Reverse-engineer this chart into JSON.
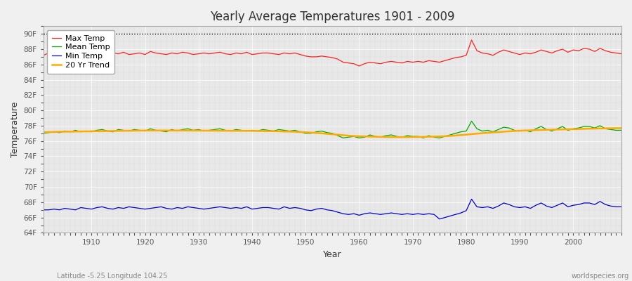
{
  "title": "Yearly Average Temperatures 1901 - 2009",
  "xlabel": "Year",
  "ylabel": "Temperature",
  "footnote_left": "Latitude -5.25 Longitude 104.25",
  "footnote_right": "worldspecies.org",
  "fig_bg_color": "#f0f0f0",
  "plot_bg_color": "#e8e8e8",
  "ylim": [
    64,
    91
  ],
  "yticks": [
    64,
    66,
    68,
    70,
    72,
    74,
    76,
    78,
    80,
    82,
    84,
    86,
    88,
    90
  ],
  "ytick_labels": [
    "64F",
    "66F",
    "68F",
    "70F",
    "72F",
    "74F",
    "76F",
    "78F",
    "80F",
    "82F",
    "84F",
    "86F",
    "88F",
    "90F"
  ],
  "xlim": [
    1901,
    2009
  ],
  "xticks": [
    1910,
    1920,
    1930,
    1940,
    1950,
    1960,
    1970,
    1980,
    1990,
    2000
  ],
  "years": [
    1901,
    1902,
    1903,
    1904,
    1905,
    1906,
    1907,
    1908,
    1909,
    1910,
    1911,
    1912,
    1913,
    1914,
    1915,
    1916,
    1917,
    1918,
    1919,
    1920,
    1921,
    1922,
    1923,
    1924,
    1925,
    1926,
    1927,
    1928,
    1929,
    1930,
    1931,
    1932,
    1933,
    1934,
    1935,
    1936,
    1937,
    1938,
    1939,
    1940,
    1941,
    1942,
    1943,
    1944,
    1945,
    1946,
    1947,
    1948,
    1949,
    1950,
    1951,
    1952,
    1953,
    1954,
    1955,
    1956,
    1957,
    1958,
    1959,
    1960,
    1961,
    1962,
    1963,
    1964,
    1965,
    1966,
    1967,
    1968,
    1969,
    1970,
    1971,
    1972,
    1973,
    1974,
    1975,
    1976,
    1977,
    1978,
    1979,
    1980,
    1981,
    1982,
    1983,
    1984,
    1985,
    1986,
    1987,
    1988,
    1989,
    1990,
    1991,
    1992,
    1993,
    1994,
    1995,
    1996,
    1997,
    1998,
    1999,
    2000,
    2001,
    2002,
    2003,
    2004,
    2005,
    2006,
    2007,
    2008,
    2009
  ],
  "max_temp": [
    87.2,
    87.5,
    87.4,
    87.3,
    87.5,
    87.4,
    87.6,
    87.3,
    87.4,
    87.5,
    87.6,
    87.4,
    87.3,
    87.5,
    87.4,
    87.6,
    87.3,
    87.4,
    87.5,
    87.3,
    87.7,
    87.5,
    87.4,
    87.3,
    87.5,
    87.4,
    87.6,
    87.5,
    87.3,
    87.4,
    87.5,
    87.4,
    87.5,
    87.6,
    87.4,
    87.3,
    87.5,
    87.4,
    87.6,
    87.3,
    87.4,
    87.5,
    87.5,
    87.4,
    87.3,
    87.5,
    87.4,
    87.5,
    87.3,
    87.1,
    87.0,
    87.0,
    87.1,
    87.0,
    86.9,
    86.7,
    86.3,
    86.2,
    86.1,
    85.8,
    86.1,
    86.3,
    86.2,
    86.1,
    86.3,
    86.4,
    86.3,
    86.2,
    86.4,
    86.3,
    86.4,
    86.3,
    86.5,
    86.4,
    86.3,
    86.5,
    86.7,
    86.9,
    87.0,
    87.2,
    89.2,
    87.8,
    87.5,
    87.4,
    87.2,
    87.6,
    87.9,
    87.7,
    87.5,
    87.3,
    87.5,
    87.4,
    87.6,
    87.9,
    87.7,
    87.5,
    87.8,
    88.0,
    87.6,
    87.9,
    87.8,
    88.1,
    88.0,
    87.7,
    88.1,
    87.8,
    87.6,
    87.5,
    87.4
  ],
  "mean_temp": [
    77.0,
    77.1,
    77.2,
    77.1,
    77.3,
    77.2,
    77.4,
    77.2,
    77.3,
    77.2,
    77.4,
    77.5,
    77.3,
    77.2,
    77.5,
    77.4,
    77.3,
    77.5,
    77.4,
    77.3,
    77.6,
    77.4,
    77.3,
    77.2,
    77.5,
    77.3,
    77.5,
    77.6,
    77.4,
    77.5,
    77.3,
    77.4,
    77.5,
    77.6,
    77.4,
    77.3,
    77.5,
    77.4,
    77.3,
    77.4,
    77.3,
    77.5,
    77.4,
    77.3,
    77.5,
    77.4,
    77.3,
    77.4,
    77.2,
    77.0,
    77.0,
    77.2,
    77.3,
    77.1,
    77.0,
    76.7,
    76.4,
    76.5,
    76.6,
    76.4,
    76.5,
    76.8,
    76.6,
    76.5,
    76.7,
    76.8,
    76.6,
    76.5,
    76.7,
    76.6,
    76.6,
    76.4,
    76.7,
    76.5,
    76.4,
    76.6,
    76.8,
    77.0,
    77.2,
    77.3,
    78.6,
    77.6,
    77.3,
    77.4,
    77.2,
    77.5,
    77.8,
    77.7,
    77.4,
    77.3,
    77.4,
    77.2,
    77.6,
    77.9,
    77.5,
    77.3,
    77.6,
    77.9,
    77.4,
    77.6,
    77.7,
    77.9,
    77.9,
    77.7,
    78.0,
    77.6,
    77.5,
    77.4,
    77.4
  ],
  "min_temp": [
    67.0,
    67.0,
    67.1,
    67.0,
    67.2,
    67.1,
    67.0,
    67.3,
    67.2,
    67.1,
    67.3,
    67.4,
    67.2,
    67.1,
    67.3,
    67.2,
    67.4,
    67.3,
    67.2,
    67.1,
    67.2,
    67.3,
    67.4,
    67.2,
    67.1,
    67.3,
    67.2,
    67.4,
    67.3,
    67.2,
    67.1,
    67.2,
    67.3,
    67.4,
    67.3,
    67.2,
    67.3,
    67.2,
    67.4,
    67.1,
    67.2,
    67.3,
    67.3,
    67.2,
    67.1,
    67.4,
    67.2,
    67.3,
    67.2,
    67.0,
    66.9,
    67.1,
    67.2,
    67.0,
    66.9,
    66.7,
    66.5,
    66.4,
    66.5,
    66.3,
    66.5,
    66.6,
    66.5,
    66.4,
    66.5,
    66.6,
    66.5,
    66.4,
    66.5,
    66.4,
    66.5,
    66.4,
    66.5,
    66.4,
    65.8,
    66.0,
    66.2,
    66.4,
    66.6,
    66.9,
    68.4,
    67.4,
    67.3,
    67.4,
    67.2,
    67.5,
    67.9,
    67.7,
    67.4,
    67.3,
    67.4,
    67.2,
    67.6,
    67.9,
    67.5,
    67.3,
    67.6,
    67.9,
    67.4,
    67.6,
    67.7,
    67.9,
    67.9,
    67.7,
    68.1,
    67.7,
    67.5,
    67.4,
    67.4
  ],
  "trend_20yr": [
    77.15,
    77.17,
    77.19,
    77.21,
    77.22,
    77.23,
    77.24,
    77.25,
    77.26,
    77.27,
    77.28,
    77.29,
    77.3,
    77.31,
    77.32,
    77.33,
    77.34,
    77.35,
    77.36,
    77.37,
    77.37,
    77.37,
    77.37,
    77.37,
    77.37,
    77.37,
    77.37,
    77.37,
    77.36,
    77.36,
    77.35,
    77.35,
    77.35,
    77.34,
    77.34,
    77.33,
    77.33,
    77.33,
    77.33,
    77.32,
    77.31,
    77.3,
    77.29,
    77.28,
    77.27,
    77.25,
    77.23,
    77.21,
    77.18,
    77.14,
    77.1,
    77.05,
    77.0,
    76.94,
    76.88,
    76.82,
    76.76,
    76.7,
    76.65,
    76.62,
    76.6,
    76.58,
    76.56,
    76.54,
    76.52,
    76.51,
    76.51,
    76.51,
    76.51,
    76.52,
    76.53,
    76.54,
    76.56,
    76.58,
    76.6,
    76.63,
    76.67,
    76.72,
    76.77,
    76.83,
    76.9,
    76.96,
    77.02,
    77.07,
    77.12,
    77.17,
    77.22,
    77.27,
    77.31,
    77.34,
    77.37,
    77.39,
    77.42,
    77.44,
    77.46,
    77.48,
    77.5,
    77.52,
    77.54,
    77.55,
    77.57,
    77.59,
    77.61,
    77.62,
    77.64,
    77.65,
    77.66,
    77.67,
    77.68
  ],
  "max_color": "#ff2020",
  "mean_color": "#00aa00",
  "min_color": "#0000cc",
  "trend_color": "#ffaa00",
  "dotted_line_y": 90,
  "legend_labels": [
    "Max Temp",
    "Mean Temp",
    "Min Temp",
    "20 Yr Trend"
  ]
}
